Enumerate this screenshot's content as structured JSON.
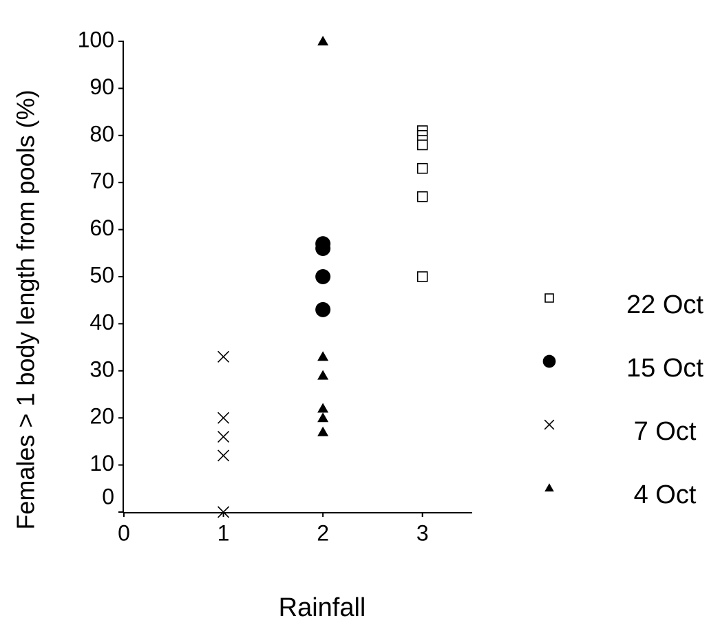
{
  "chart_data": {
    "type": "scatter",
    "x_label": "Rainfall",
    "y_label": "Females > 1 body length from pools (%)",
    "xlim": [
      0,
      3.5
    ],
    "xticks": [
      0,
      1,
      2,
      3
    ],
    "ylim": [
      0,
      100
    ],
    "yticks": [
      0,
      10,
      20,
      30,
      40,
      50,
      60,
      70,
      80,
      90,
      100
    ],
    "legend": "right",
    "series": [
      {
        "name": "22 Oct",
        "marker": "square-open",
        "color": "#000000",
        "x": [
          3,
          3,
          3,
          3,
          3,
          3
        ],
        "values": [
          81,
          80,
          78,
          73,
          67,
          50
        ]
      },
      {
        "name": "15 Oct",
        "marker": "circle",
        "color": "#000000",
        "x": [
          2,
          2,
          2,
          2
        ],
        "values": [
          57,
          56,
          50,
          43
        ]
      },
      {
        "name": "7 Oct",
        "marker": "x",
        "color": "#000000",
        "x": [
          1,
          1,
          1,
          1,
          1
        ],
        "values": [
          33,
          20,
          16,
          12,
          0
        ]
      },
      {
        "name": "4 Oct",
        "marker": "triangle",
        "color": "#000000",
        "x": [
          2,
          2,
          2,
          2,
          2,
          2
        ],
        "values": [
          100,
          33,
          29,
          22,
          20,
          17
        ]
      }
    ]
  }
}
